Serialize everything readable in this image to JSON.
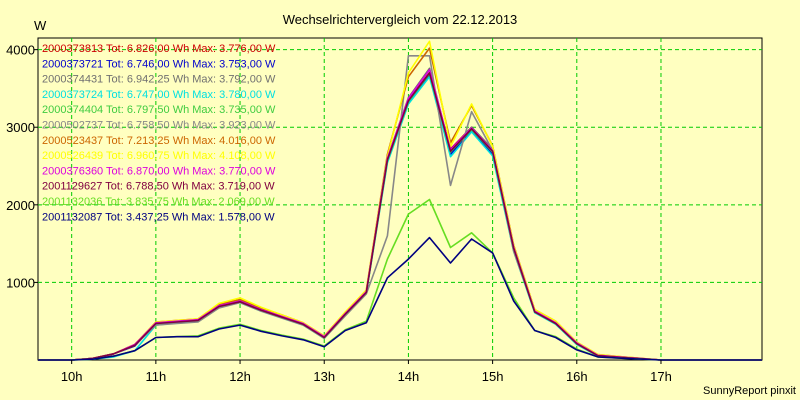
{
  "chart_data": {
    "type": "line",
    "title": "Wechselrichtervergleich vom 22.12.2013",
    "ylabel": "W",
    "xlabel": "",
    "footer": "SunnyReport pinxit",
    "ylim": [
      0,
      4150
    ],
    "xlim": [
      9.6,
      18.2
    ],
    "yticks": [
      1000,
      2000,
      3000,
      4000
    ],
    "xticks": [
      10,
      11,
      12,
      13,
      14,
      15,
      16,
      17
    ],
    "xtick_labels": [
      "10h",
      "11h",
      "12h",
      "13h",
      "14h",
      "15h",
      "16h",
      "17h"
    ],
    "grid": true,
    "legend_position": "top-left",
    "x": [
      9.6,
      10.0,
      10.25,
      10.5,
      10.75,
      11.0,
      11.25,
      11.5,
      11.75,
      12.0,
      12.25,
      12.5,
      12.75,
      13.0,
      13.25,
      13.5,
      13.75,
      14.0,
      14.25,
      14.5,
      14.75,
      15.0,
      15.25,
      15.5,
      15.75,
      16.0,
      16.25,
      16.5,
      16.75,
      17.0,
      17.25,
      17.5,
      18.2
    ],
    "series": [
      {
        "name": "2000373813",
        "legend": "2000373813 Tot: 6.826,00 Wh Max: 3.776,00 W",
        "color": "#cc0000",
        "values": [
          0,
          0,
          20,
          80,
          200,
          480,
          500,
          520,
          700,
          760,
          650,
          560,
          470,
          300,
          600,
          880,
          2600,
          3350,
          3700,
          2720,
          3000,
          2700,
          1450,
          630,
          480,
          220,
          60,
          40,
          20,
          0,
          0,
          0,
          0
        ]
      },
      {
        "name": "2000373721",
        "legend": "2000373721 Tot: 6.746,00 Wh Max: 3.753,00 W",
        "color": "#0000cc",
        "values": [
          0,
          0,
          20,
          80,
          180,
          470,
          490,
          510,
          690,
          750,
          640,
          550,
          460,
          290,
          590,
          870,
          2560,
          3320,
          3680,
          2650,
          2960,
          2650,
          1420,
          620,
          470,
          210,
          55,
          35,
          18,
          0,
          0,
          0,
          0
        ]
      },
      {
        "name": "2000374431",
        "legend": "2000374431 Tot: 6.942,25 Wh Max: 3.792,00 W",
        "color": "#707070",
        "values": [
          0,
          0,
          20,
          80,
          200,
          480,
          500,
          520,
          700,
          760,
          650,
          560,
          470,
          300,
          600,
          880,
          2600,
          3380,
          3760,
          2700,
          3000,
          2720,
          1460,
          640,
          490,
          220,
          60,
          40,
          20,
          0,
          0,
          0,
          0
        ]
      },
      {
        "name": "2000373724",
        "legend": "2000373724 Tot: 6.747,00 Wh Max: 3.780,00 W",
        "color": "#00e0e0",
        "values": [
          0,
          0,
          10,
          40,
          120,
          450,
          480,
          500,
          680,
          740,
          630,
          540,
          450,
          280,
          580,
          860,
          2540,
          3300,
          3650,
          2620,
          2940,
          2630,
          1400,
          610,
          460,
          200,
          50,
          30,
          15,
          0,
          0,
          0,
          0
        ]
      },
      {
        "name": "2000374404",
        "legend": "2000374404 Tot: 6.797,50 Wh Max: 3.735,00 W",
        "color": "#40cc40",
        "values": [
          0,
          0,
          20,
          80,
          190,
          470,
          490,
          510,
          690,
          750,
          640,
          550,
          460,
          290,
          590,
          870,
          2570,
          3330,
          3690,
          2680,
          2970,
          2680,
          1430,
          620,
          470,
          210,
          55,
          35,
          18,
          0,
          0,
          0,
          0
        ]
      },
      {
        "name": "2000502737",
        "legend": "2000502737 Tot: 6.758,50 Wh Max: 3.923,00 W",
        "color": "#888888",
        "values": [
          0,
          0,
          20,
          80,
          190,
          450,
          470,
          490,
          670,
          740,
          630,
          540,
          450,
          280,
          570,
          850,
          1600,
          3920,
          3920,
          2250,
          3200,
          2700,
          1400,
          630,
          470,
          210,
          55,
          35,
          18,
          0,
          0,
          0,
          0
        ]
      },
      {
        "name": "2000523437",
        "legend": "2000523437 Tot: 7.213,25 Wh Max: 4.016,00 W",
        "color": "#cc6600",
        "values": [
          0,
          0,
          20,
          80,
          200,
          490,
          510,
          530,
          720,
          780,
          670,
          580,
          480,
          310,
          610,
          900,
          2650,
          3650,
          4020,
          2800,
          3280,
          2760,
          1480,
          650,
          500,
          230,
          70,
          45,
          22,
          0,
          0,
          0,
          0
        ]
      },
      {
        "name": "2000526439",
        "legend": "2000526439 Tot: 6.960,75 Wh Max: 4.108,00 W",
        "color": "#ffff00",
        "values": [
          0,
          0,
          20,
          80,
          200,
          490,
          510,
          530,
          730,
          800,
          680,
          580,
          480,
          310,
          620,
          900,
          2620,
          3700,
          4108,
          2750,
          3300,
          2750,
          1470,
          650,
          500,
          230,
          70,
          45,
          22,
          0,
          0,
          0,
          0
        ]
      },
      {
        "name": "2000376360",
        "legend": "2000376360 Tot: 6.870,00 Wh Max: 3.770,00 W",
        "color": "#dd00dd",
        "values": [
          0,
          0,
          20,
          80,
          200,
          480,
          500,
          520,
          700,
          760,
          650,
          560,
          470,
          300,
          600,
          880,
          2600,
          3370,
          3740,
          2710,
          2990,
          2700,
          1450,
          630,
          480,
          220,
          60,
          40,
          20,
          0,
          0,
          0,
          0
        ]
      },
      {
        "name": "2001129627",
        "legend": "2001129627 Tot: 6.788,50 Wh Max: 3.719,00 W",
        "color": "#800040",
        "values": [
          0,
          0,
          20,
          80,
          190,
          470,
          490,
          510,
          690,
          750,
          640,
          550,
          460,
          290,
          590,
          870,
          2580,
          3340,
          3700,
          2690,
          2980,
          2690,
          1440,
          620,
          470,
          210,
          55,
          35,
          18,
          0,
          0,
          0,
          0
        ]
      },
      {
        "name": "2001132036",
        "legend": "2001132036 Tot: 3.835,75 Wh Max: 2.069,00 W",
        "color": "#66dd22",
        "values": [
          0,
          0,
          10,
          50,
          120,
          290,
          300,
          310,
          410,
          460,
          380,
          320,
          270,
          180,
          390,
          500,
          1300,
          1880,
          2069,
          1450,
          1640,
          1380,
          800,
          380,
          300,
          140,
          40,
          25,
          12,
          0,
          0,
          0,
          0
        ]
      },
      {
        "name": "2001132087",
        "legend": "2001132087 Tot: 3.437,25 Wh Max: 1.578,00 W",
        "color": "#000080",
        "values": [
          0,
          0,
          10,
          50,
          120,
          290,
          300,
          300,
          400,
          450,
          370,
          310,
          260,
          170,
          380,
          480,
          1060,
          1300,
          1578,
          1250,
          1560,
          1380,
          760,
          380,
          290,
          130,
          40,
          25,
          12,
          0,
          0,
          0,
          0
        ]
      }
    ]
  }
}
